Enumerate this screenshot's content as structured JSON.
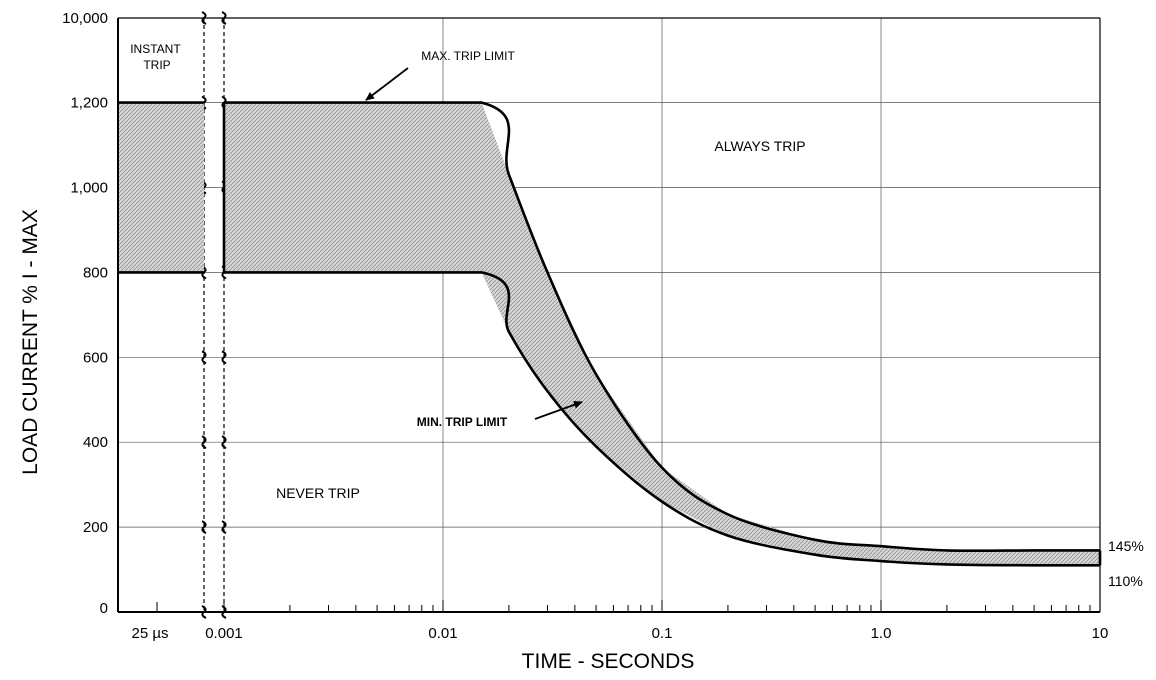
{
  "chart_data": {
    "type": "area",
    "title": "",
    "xlabel": "TIME - SECONDS",
    "ylabel": "LOAD CURRENT % I - MAX",
    "x_scale": "log",
    "xlim": [
      0.001,
      10
    ],
    "x_ticks": [
      "25 µs",
      "0.001",
      "0.01",
      "0.1",
      "1.0",
      "10"
    ],
    "y_ticks": [
      "10,000",
      "1,200",
      "1,000",
      "800",
      "600",
      "400",
      "200",
      "0"
    ],
    "grid": true,
    "series": [
      {
        "name": "MAX. TRIP LIMIT",
        "x": [
          0.001,
          0.015,
          0.02,
          0.03,
          0.05,
          0.1,
          0.2,
          0.5,
          1.0,
          2.0,
          5.0,
          10
        ],
        "y": [
          1200,
          1200,
          1030,
          800,
          560,
          340,
          230,
          170,
          155,
          145,
          145,
          145
        ]
      },
      {
        "name": "MIN. TRIP LIMIT",
        "x": [
          0.001,
          0.015,
          0.02,
          0.03,
          0.05,
          0.1,
          0.2,
          0.5,
          1.0,
          2.0,
          5.0,
          10
        ],
        "y": [
          800,
          800,
          660,
          520,
          390,
          260,
          180,
          135,
          120,
          112,
          110,
          110
        ]
      }
    ],
    "instant_trip_band": [
      800,
      1200
    ],
    "annotations": {
      "instant_trip": "INSTANT\nTRIP",
      "always_trip": "ALWAYS TRIP",
      "never_trip": "NEVER TRIP",
      "max_label": "MAX. TRIP LIMIT",
      "min_label": "MIN. TRIP LIMIT",
      "right_145": "145%",
      "right_110": "110%"
    }
  }
}
